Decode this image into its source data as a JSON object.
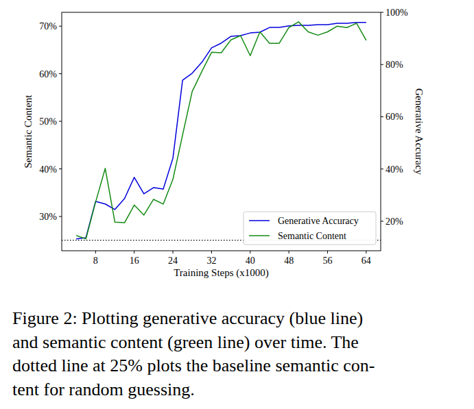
{
  "chart_data": {
    "type": "line",
    "x_label": "Training Steps (x1000)",
    "y_label": "Semantic Content",
    "y2_label": "Generative Accuracy",
    "caption": [
      "Figure 2: Plotting generative accuracy (blue line)",
      "and semantic content (green line) over time. The",
      "dotted line at 25% plots the baseline semantic con-",
      "tent for random guessing."
    ],
    "x": [
      4,
      6,
      8,
      10,
      12,
      14,
      16,
      18,
      20,
      22,
      24,
      26,
      28,
      30,
      32,
      34,
      36,
      38,
      40,
      42,
      44,
      46,
      48,
      50,
      52,
      54,
      56,
      58,
      60,
      62,
      64
    ],
    "series": [
      {
        "name": "Generative Accuracy",
        "color": "#0000dd",
        "axis": "y2",
        "values": [
          13.2,
          13.7,
          27.6,
          26.6,
          24.5,
          28.7,
          36.8,
          30.5,
          32.9,
          32.3,
          44.1,
          74.0,
          76.7,
          80.9,
          86.4,
          88.2,
          90.8,
          91.1,
          92.1,
          92.4,
          94.2,
          94.2,
          94.8,
          95.0,
          95.0,
          95.3,
          95.3,
          95.8,
          95.8,
          96.1,
          96.1
        ]
      },
      {
        "name": "Semantic Content",
        "color": "#138a13",
        "values": [
          26.0,
          25.3,
          33.0,
          40.1,
          28.8,
          28.7,
          32.4,
          30.3,
          33.6,
          32.6,
          37.8,
          47.1,
          56.3,
          60.5,
          64.5,
          64.4,
          67.1,
          68.0,
          63.8,
          68.8,
          66.4,
          66.4,
          69.7,
          70.9,
          68.8,
          68.1,
          68.8,
          70.0,
          69.7,
          70.6,
          67.0
        ]
      }
    ],
    "baseline": 25,
    "xlim": [
      1,
      67
    ],
    "xticks": [
      8,
      16,
      24,
      32,
      40,
      48,
      56,
      64
    ],
    "ylim": [
      22.8,
      72.9
    ],
    "yticks": [
      {
        "value": 30,
        "label": "30%"
      },
      {
        "value": 40,
        "label": "40%"
      },
      {
        "value": 50,
        "label": "50%"
      },
      {
        "value": 60,
        "label": "60%"
      },
      {
        "value": 70,
        "label": "70%"
      }
    ],
    "y2lim": [
      8.7,
      100
    ],
    "y2ticks": [
      {
        "value": 20,
        "label": "20%"
      },
      {
        "value": 40,
        "label": "40%"
      },
      {
        "value": 60,
        "label": "60%"
      },
      {
        "value": 80,
        "label": "80%"
      },
      {
        "value": 100,
        "label": "100%"
      }
    ],
    "legend": "lower right",
    "grid": false
  }
}
